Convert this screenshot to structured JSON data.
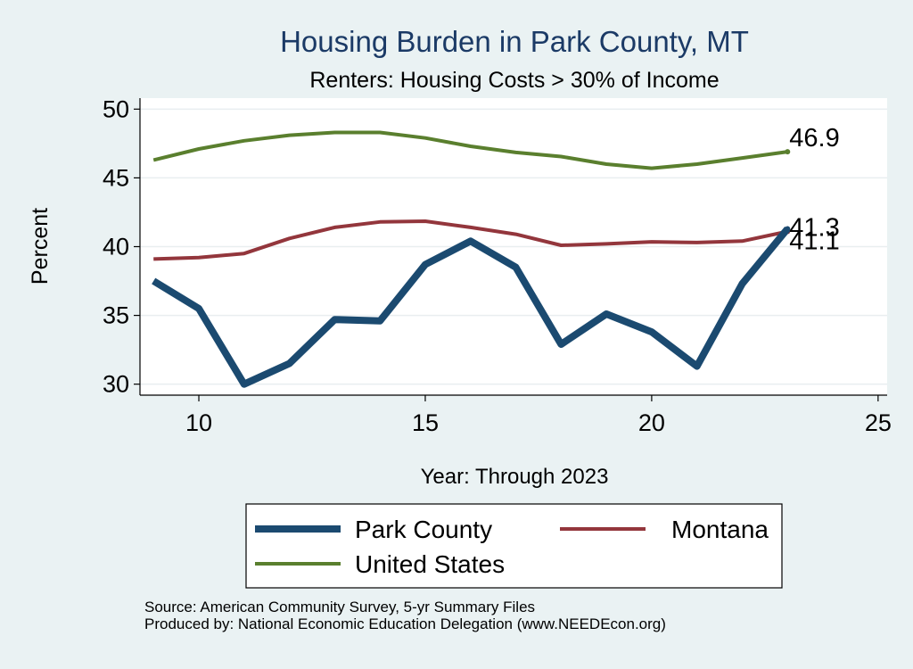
{
  "chart_data": {
    "type": "line",
    "title": "Housing Burden in Park County, MT",
    "subtitle": "Renters: Housing Costs > 30% of Income",
    "xlabel": "Year: Through 2023",
    "ylabel": "Percent",
    "xlim": [
      8.7,
      25.2
    ],
    "ylim": [
      29.2,
      50.8
    ],
    "x_ticks": [
      10,
      15,
      20,
      25
    ],
    "y_ticks": [
      30,
      35,
      40,
      45,
      50
    ],
    "grid": true,
    "legend_position": "bottom",
    "x": [
      9,
      10,
      11,
      12,
      13,
      14,
      15,
      16,
      17,
      18,
      19,
      20,
      21,
      22,
      23
    ],
    "series": [
      {
        "name": "Park County",
        "color": "#1b4a70",
        "values": [
          37.5,
          35.5,
          30.0,
          31.5,
          34.7,
          34.6,
          38.7,
          40.4,
          38.5,
          32.9,
          35.1,
          33.8,
          31.3,
          37.3,
          41.3
        ],
        "end_label": "41.3"
      },
      {
        "name": "Montana",
        "color": "#93363c",
        "values": [
          39.1,
          39.2,
          39.5,
          40.6,
          41.4,
          41.8,
          41.85,
          41.4,
          40.9,
          40.1,
          40.2,
          40.35,
          40.3,
          40.4,
          41.1
        ],
        "end_label": "41.1"
      },
      {
        "name": "United States",
        "color": "#5a7f2e",
        "values": [
          46.3,
          47.1,
          47.7,
          48.1,
          48.3,
          48.3,
          47.9,
          47.3,
          46.85,
          46.55,
          46.0,
          45.7,
          46.0,
          46.45,
          46.9
        ],
        "end_label": "46.9"
      }
    ]
  },
  "footer": {
    "source": "Source: American Community Survey, 5-yr Summary Files",
    "produced": "Produced by: National Economic Education Delegation (www.NEEDEcon.org)"
  }
}
